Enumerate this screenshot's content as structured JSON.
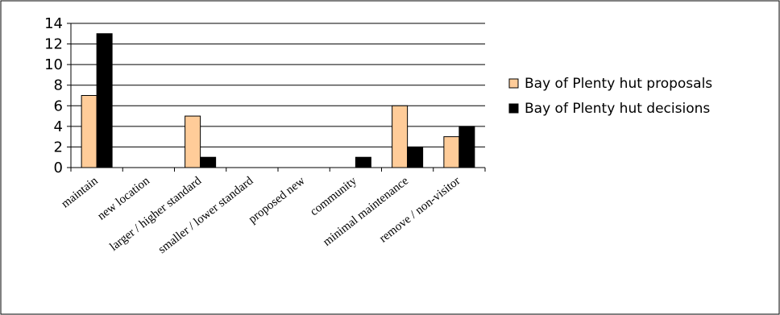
{
  "chart_data": {
    "type": "bar",
    "categories": [
      "maintain",
      "new location",
      "larger / higher standard",
      "smaller / lower standard",
      "proposed new",
      "community",
      "minimal maintenance",
      "remove / non-visitor"
    ],
    "series": [
      {
        "name": "Bay of Plenty hut proposals",
        "values": [
          7,
          0,
          5,
          0,
          0,
          0,
          6,
          3
        ],
        "color": "#FFCC99"
      },
      {
        "name": "Bay of Plenty hut decisions",
        "values": [
          13,
          0,
          1,
          0,
          0,
          1,
          2,
          4
        ],
        "color": "#000000"
      }
    ],
    "ylim": [
      0,
      14
    ],
    "yticks": [
      "0",
      "2",
      "4",
      "6",
      "8",
      "10",
      "12",
      "14"
    ],
    "grid": true,
    "legend_position": "right",
    "title": "",
    "xlabel": "",
    "ylabel": ""
  }
}
